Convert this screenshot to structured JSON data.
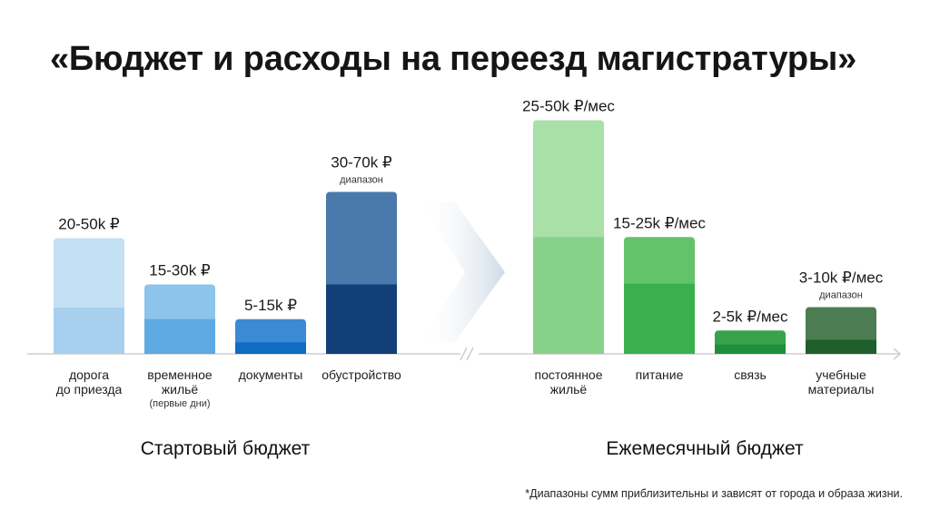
{
  "title": "«Бюджет и расходы на переезд магистратуры»",
  "footnote": "*Диапазоны сумм приблизительны и зависят от города и образа жизни.",
  "colors": {
    "blue_light": [
      "#c3e0f4",
      "#a8d0ee"
    ],
    "blue_mid": [
      "#8cc4ec",
      "#5fa9e3"
    ],
    "blue_doc": [
      "#3d8ad4",
      "#0f6cc3"
    ],
    "blue_dark": [
      "#4a79ac",
      "#133f79"
    ],
    "green_light": [
      "#a8e0a8",
      "#87d28a"
    ],
    "green_mid": [
      "#63c36a",
      "#3caf4d"
    ],
    "green_doc": [
      "#36a24c",
      "#1e8e3a"
    ],
    "green_dark": [
      "#4c7d52",
      "#1e5f2c"
    ],
    "axis": "#cfcfcf"
  },
  "chart_data": [
    {
      "type": "bar",
      "xlabel": "Стартовый бюджет",
      "unit": "k ₽",
      "categories": [
        {
          "lines": [
            "дорога",
            "до приезда"
          ],
          "note": ""
        },
        {
          "lines": [
            "временное",
            "жильё"
          ],
          "note": "(первые дни)"
        },
        {
          "lines": [
            "документы"
          ],
          "note": ""
        },
        {
          "lines": [
            "обустройство"
          ],
          "note": ""
        }
      ],
      "ranges": [
        [
          20,
          50
        ],
        [
          15,
          30
        ],
        [
          5,
          15
        ],
        [
          30,
          70
        ]
      ],
      "value_labels": [
        "20-50k ₽",
        "15-30k ₽",
        "5-15k ₽",
        "30-70k ₽"
      ],
      "sub_labels": [
        "",
        "",
        "",
        "диапазон"
      ],
      "colors": [
        "blue_light",
        "blue_mid",
        "blue_doc",
        "blue_dark"
      ]
    },
    {
      "type": "bar",
      "xlabel": "Ежемесячный бюджет",
      "unit": "k ₽/мес",
      "categories": [
        {
          "lines": [
            "постоянное",
            "жильё"
          ],
          "note": ""
        },
        {
          "lines": [
            "питание"
          ],
          "note": ""
        },
        {
          "lines": [
            "связь"
          ],
          "note": ""
        },
        {
          "lines": [
            "учебные",
            "материалы"
          ],
          "note": ""
        }
      ],
      "ranges": [
        [
          25,
          50
        ],
        [
          15,
          25
        ],
        [
          2,
          5
        ],
        [
          3,
          10
        ]
      ],
      "value_labels": [
        "25-50k ₽/мес",
        "15-25k ₽/мес",
        "2-5k ₽/мес",
        "3-10k ₽/мес"
      ],
      "sub_labels": [
        "",
        "",
        "",
        "диапазон"
      ],
      "colors": [
        "green_light",
        "green_mid",
        "green_doc",
        "green_dark"
      ]
    }
  ]
}
